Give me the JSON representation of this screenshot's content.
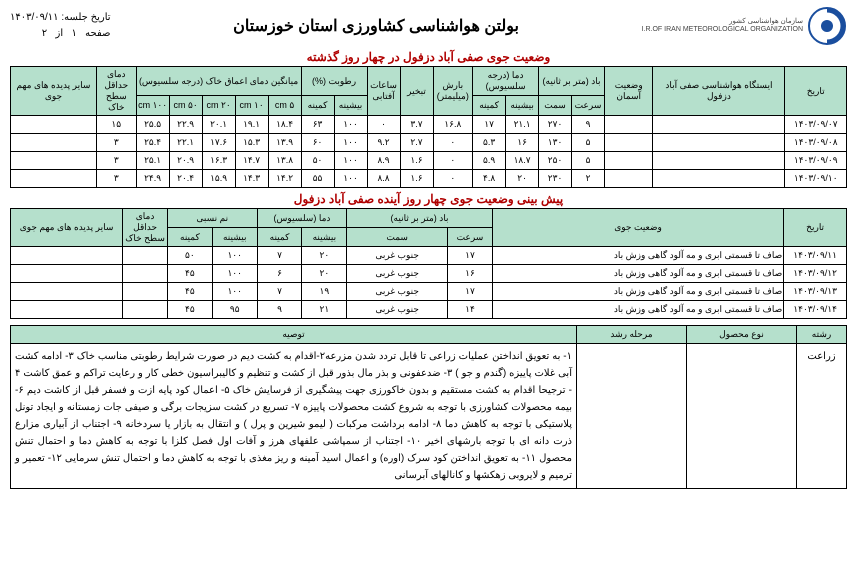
{
  "header": {
    "org_en": "I.R.OF IRAN METEOROLOGICAL ORGANIZATION",
    "org_fa": "سازمان هواشناسی کشور",
    "title": "بولتن هواشناسی کشاورزی استان خوزستان",
    "session_label": "تاریخ جلسه:",
    "session_date": "۱۴۰۳/۰۹/۱۱",
    "page_label_1": "صفحه",
    "page_cur": "۱",
    "page_label_2": "از",
    "page_total": "۲"
  },
  "table1": {
    "title": "وضعیت جوی صفی آباد دزفول در چهار روز گذشته",
    "head": {
      "date": "تاریخ",
      "station": "ایستگاه هواشناسی صفی آباد دزفول",
      "sky": "وضعیت آسمان",
      "wind": "باد (متر بر ثانیه)",
      "wind_speed": "سرعت",
      "wind_dir": "سمت",
      "temp": "دما (درجه سلسیوس)",
      "temp_max": "بیشینه",
      "temp_min": "کمینه",
      "rain": "بارش (میلیمتر)",
      "evap": "تبخیر",
      "sun": "ساعات آفتابی",
      "hum": "رطوبت (%)",
      "hum_max": "بیشینه",
      "hum_min": "کمینه",
      "soil": "میانگین دمای اعماق خاک (درجه سلسیوس)",
      "d5": "۵ cm",
      "d10": "۱۰ cm",
      "d20": "۲۰ cm",
      "d50": "۵۰ cm",
      "d100": "۱۰۰ cm",
      "minsoil": "دمای حداقل سطح خاک",
      "other": "سایر پدیده های مهم جوی"
    },
    "rows": [
      {
        "date": "۱۴۰۳/۰۹/۰۷",
        "sky": "",
        "ws": "۹",
        "wd": "۲۷۰",
        "tmax": "۲۱.۱",
        "tmin": "۱۷",
        "rain": "۱۶.۸",
        "evap": "۳.۷",
        "sun": "۰",
        "hmax": "۱۰۰",
        "hmin": "۶۳",
        "s5": "۱۸.۴",
        "s10": "۱۹.۱",
        "s20": "۲۰.۱",
        "s50": "۲۲.۹",
        "s100": "۲۵.۵",
        "msoil": "۱۵",
        "other": ""
      },
      {
        "date": "۱۴۰۳/۰۹/۰۸",
        "sky": "",
        "ws": "۵",
        "wd": "۱۳۰",
        "tmax": "۱۶",
        "tmin": "۵.۳",
        "rain": "۰",
        "evap": "۲.۷",
        "sun": "۹.۲",
        "hmax": "۱۰۰",
        "hmin": "۶۰",
        "s5": "۱۳.۹",
        "s10": "۱۵.۳",
        "s20": "۱۷.۶",
        "s50": "۲۲.۱",
        "s100": "۲۵.۴",
        "msoil": "۳",
        "other": ""
      },
      {
        "date": "۱۴۰۳/۰۹/۰۹",
        "sky": "",
        "ws": "۵",
        "wd": "۲۵۰",
        "tmax": "۱۸.۷",
        "tmin": "۵.۹",
        "rain": "۰",
        "evap": "۱.۶",
        "sun": "۸.۹",
        "hmax": "۱۰۰",
        "hmin": "۵۰",
        "s5": "۱۳.۸",
        "s10": "۱۴.۷",
        "s20": "۱۶.۳",
        "s50": "۲۰.۹",
        "s100": "۲۵.۱",
        "msoil": "۳",
        "other": ""
      },
      {
        "date": "۱۴۰۳/۰۹/۱۰",
        "sky": "",
        "ws": "۲",
        "wd": "۲۳۰",
        "tmax": "۲۰",
        "tmin": "۴.۸",
        "rain": "۰",
        "evap": "۱.۶",
        "sun": "۸.۸",
        "hmax": "۱۰۰",
        "hmin": "۵۵",
        "s5": "۱۴.۲",
        "s10": "۱۴.۳",
        "s20": "۱۵.۹",
        "s50": "۲۰.۴",
        "s100": "۲۴.۹",
        "msoil": "۳",
        "other": ""
      }
    ]
  },
  "table2": {
    "title": "پیش بینی وضعیت جوی چهار روز آینده صفی آباد دزفول",
    "head": {
      "date": "تاریخ",
      "cond": "وضعیت جوی",
      "wind": "باد (متر بر ثانیه)",
      "wind_speed": "سرعت",
      "wind_dir": "سمت",
      "temp": "دما (سلسیوس)",
      "temp_max": "بیشینه",
      "temp_min": "کمینه",
      "rh": "نم نسبی",
      "rh_max": "بیشینه",
      "rh_min": "کمینه",
      "minsoil": "دمای حداقل سطح خاک",
      "other": "سایر پدیده های مهم جوی"
    },
    "rows": [
      {
        "date": "۱۴۰۳/۰۹/۱۱",
        "cond": "صاف تا قسمتی ابری و مه آلود گاهی وزش باد",
        "ws": "۱۷",
        "wd": "جنوب غربی",
        "tmax": "۲۰",
        "tmin": "۷",
        "rhmax": "۱۰۰",
        "rhmin": "۵۰",
        "msoil": "",
        "other": ""
      },
      {
        "date": "۱۴۰۳/۰۹/۱۲",
        "cond": "صاف تا قسمتی ابری و مه آلود گاهی وزش باد",
        "ws": "۱۶",
        "wd": "جنوب غربی",
        "tmax": "۲۰",
        "tmin": "۶",
        "rhmax": "۱۰۰",
        "rhmin": "۴۵",
        "msoil": "",
        "other": ""
      },
      {
        "date": "۱۴۰۳/۰۹/۱۳",
        "cond": "صاف تا قسمتی ابری و مه آلود گاهی وزش باد",
        "ws": "۱۷",
        "wd": "جنوب غربی",
        "tmax": "۱۹",
        "tmin": "۷",
        "rhmax": "۱۰۰",
        "rhmin": "۴۵",
        "msoil": "",
        "other": ""
      },
      {
        "date": "۱۴۰۳/۰۹/۱۴",
        "cond": "صاف تا قسمتی ابری و مه آلود گاهی وزش باد",
        "ws": "۱۴",
        "wd": "جنوب غربی",
        "tmax": "۲۱",
        "tmin": "۹",
        "rhmax": "۹۵",
        "rhmin": "۴۵",
        "msoil": "",
        "other": ""
      }
    ]
  },
  "advice": {
    "head": {
      "field": "رشته",
      "crop": "نوع محصول",
      "stage": "مرحله رشد",
      "rec": "توصیه"
    },
    "field": "زراعت",
    "text": "۱- به تعویق انداختن عملیات زراعی تا قابل تردد شدن مزرعه۲-اقدام به کشت دیم در صورت شرایط رطوبتی مناسب خاک ۳- ادامه کشت آبی غلات پاییزه (گندم و جو )  ۳- ضدعفونی و بذر مال بذور قبل از کشت و تنظیم و کالیبراسیون خطی کار و رعایت تراکم و عمق کاشت ۴ - ترجیحا اقدام به کشت مستقیم و بدون خاکورزی جهت پیشگیری از فرسایش خاک ۵- اعمال کود پایه ازت و فسفر قبل از کاشت دیم  ۶-بیمه محصولات کشاورزی با توجه به شروع کشت محصولات پاییزه ۷- تسریع در کشت سزیجات برگی و صیفی جات زمستانه و ایجاد تونل پلاستیکی با توجه به کاهش دما  ۸- ادامه برداشت مرکبات ( لیمو شیرین و پرل ) و انتقال به بازار یا سردخانه ۹- اجتناب از آبیاری مزارع ذرت دانه ای با توجه بارشهای اخیر ۱۰- اجتناب از سمپاشی علفهای هرز و آفات اول فصل کلزا با توجه به کاهش دما و احتمال تنش محصول ۱۱- به تعویق انداختن کود سرک (اوره) و اعمال اسید آمینه و ریز مغذی با توجه به کاهش دما و احتمال تنش سرمایی ۱۲-  تعمیر و ترمیم و لایروبی زهکشها و کانالهای آبرسانی"
  }
}
